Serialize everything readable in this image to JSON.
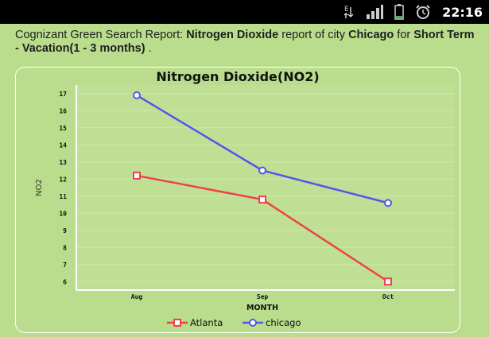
{
  "status_bar": {
    "time": "22:16",
    "icons": [
      "data-transfer-icon",
      "signal-icon",
      "battery-icon",
      "alarm-icon"
    ]
  },
  "report": {
    "prefix": "Cognizant Green Search Report: ",
    "pollutant": "Nitrogen Dioxide",
    "middle": " report of city ",
    "city": "Chicago",
    "suffix": " for ",
    "term": "Short Term - Vacation(1 - 3 months)",
    "end": " ."
  },
  "chart_data": {
    "type": "line",
    "title": "Nitrogen Dioxide(NO2)",
    "xlabel": "MONTH",
    "ylabel": "NO2",
    "categories": [
      "Aug",
      "Sep",
      "Oct"
    ],
    "yticks": [
      6,
      7,
      8,
      9,
      10,
      11,
      12,
      13,
      14,
      15,
      16,
      17
    ],
    "ylim": [
      5.5,
      17.5
    ],
    "grid": true,
    "legend_position": "bottom",
    "series": [
      {
        "name": "Atlanta",
        "values": [
          12.2,
          10.8,
          6.0
        ],
        "color": "#f0404c",
        "marker": "square"
      },
      {
        "name": "chicago",
        "values": [
          16.9,
          12.5,
          10.6
        ],
        "color": "#5555ee",
        "marker": "circle"
      }
    ]
  }
}
